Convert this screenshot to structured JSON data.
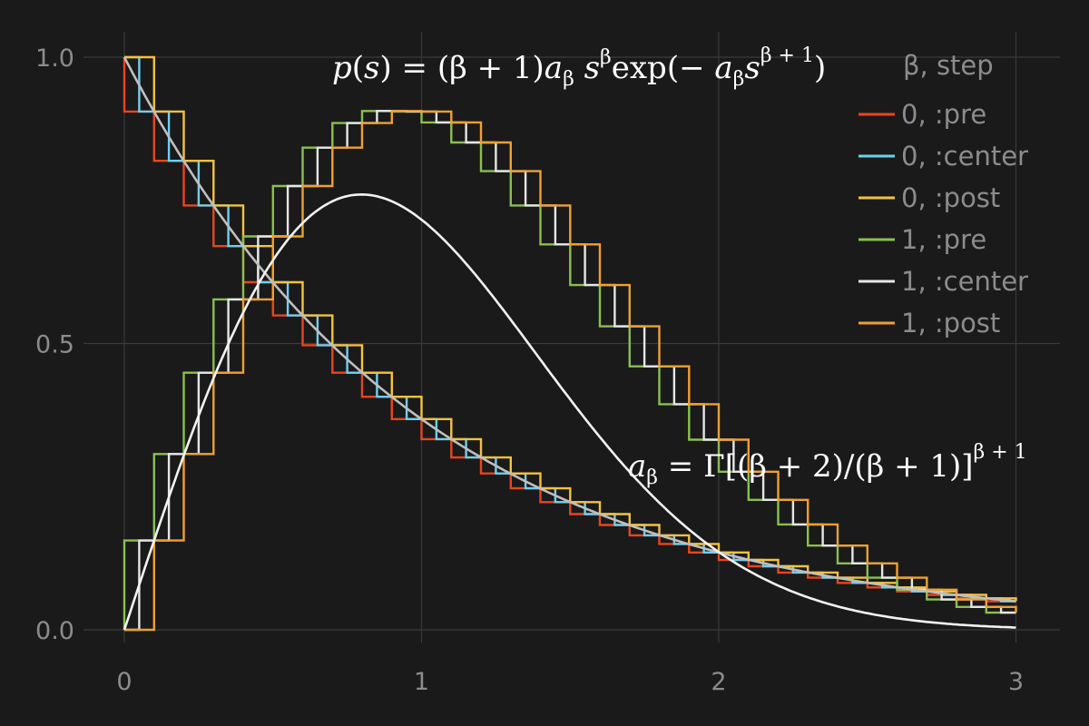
{
  "chart_data": {
    "type": "line",
    "title": "",
    "xlabel": "",
    "ylabel": "",
    "xlim": [
      0,
      3
    ],
    "ylim": [
      0,
      1
    ],
    "x_ticks": [
      "0",
      "1",
      "2",
      "3"
    ],
    "y_ticks": [
      "0.0",
      "0.5",
      "1.0"
    ],
    "grid": true,
    "legend_title": "β, step",
    "legend_position": "top-right",
    "x": [
      0.0,
      0.1,
      0.2,
      0.3,
      0.4,
      0.5,
      0.6,
      0.7,
      0.8,
      0.9,
      1.0,
      1.1,
      1.2,
      1.3,
      1.4,
      1.5,
      1.6,
      1.7,
      1.8,
      1.9,
      2.0,
      2.1,
      2.2,
      2.3,
      2.4,
      2.5,
      2.6,
      2.7,
      2.8,
      2.9,
      3.0
    ],
    "series": [
      {
        "name": "0, :pre",
        "beta": 0,
        "step": "pre",
        "color": "#e8461e",
        "values": [
          1.0,
          0.905,
          0.819,
          0.741,
          0.67,
          0.607,
          0.549,
          0.497,
          0.449,
          0.407,
          0.368,
          0.333,
          0.301,
          0.273,
          0.247,
          0.223,
          0.202,
          0.183,
          0.165,
          0.15,
          0.135,
          0.122,
          0.111,
          0.1,
          0.091,
          0.082,
          0.074,
          0.067,
          0.061,
          0.055,
          0.05
        ]
      },
      {
        "name": "0, :center",
        "beta": 0,
        "step": "center",
        "color": "#6fd0f0",
        "values": [
          1.0,
          0.905,
          0.819,
          0.741,
          0.67,
          0.607,
          0.549,
          0.497,
          0.449,
          0.407,
          0.368,
          0.333,
          0.301,
          0.273,
          0.247,
          0.223,
          0.202,
          0.183,
          0.165,
          0.15,
          0.135,
          0.122,
          0.111,
          0.1,
          0.091,
          0.082,
          0.074,
          0.067,
          0.061,
          0.055,
          0.05
        ]
      },
      {
        "name": "0, :post",
        "beta": 0,
        "step": "post",
        "color": "#f5c23c",
        "values": [
          1.0,
          0.905,
          0.819,
          0.741,
          0.67,
          0.607,
          0.549,
          0.497,
          0.449,
          0.407,
          0.368,
          0.333,
          0.301,
          0.273,
          0.247,
          0.223,
          0.202,
          0.183,
          0.165,
          0.15,
          0.135,
          0.122,
          0.111,
          0.1,
          0.091,
          0.082,
          0.074,
          0.067,
          0.061,
          0.055,
          0.05
        ]
      },
      {
        "name": "1, :pre",
        "beta": 1,
        "step": "pre",
        "color": "#8ac04e",
        "values": [
          0.0,
          0.156,
          0.307,
          0.449,
          0.577,
          0.687,
          0.775,
          0.842,
          0.885,
          0.906,
          0.905,
          0.886,
          0.851,
          0.801,
          0.741,
          0.673,
          0.602,
          0.53,
          0.46,
          0.394,
          0.332,
          0.276,
          0.227,
          0.184,
          0.147,
          0.116,
          0.091,
          0.07,
          0.053,
          0.04,
          0.03
        ]
      },
      {
        "name": "1, :center",
        "beta": 1,
        "step": "center",
        "color": "#e6e6e6",
        "values": [
          0.0,
          0.156,
          0.307,
          0.449,
          0.577,
          0.687,
          0.775,
          0.842,
          0.885,
          0.906,
          0.905,
          0.886,
          0.851,
          0.801,
          0.741,
          0.673,
          0.602,
          0.53,
          0.46,
          0.394,
          0.332,
          0.276,
          0.227,
          0.184,
          0.147,
          0.116,
          0.091,
          0.07,
          0.053,
          0.04,
          0.03
        ]
      },
      {
        "name": "1, :post",
        "beta": 1,
        "step": "post",
        "color": "#f0a030",
        "values": [
          0.0,
          0.156,
          0.307,
          0.449,
          0.577,
          0.687,
          0.775,
          0.842,
          0.885,
          0.906,
          0.905,
          0.886,
          0.851,
          0.801,
          0.741,
          0.673,
          0.602,
          0.53,
          0.46,
          0.394,
          0.332,
          0.276,
          0.227,
          0.184,
          0.147,
          0.116,
          0.091,
          0.07,
          0.053,
          0.04,
          0.03
        ]
      }
    ],
    "smooth_curves": [
      {
        "beta": 0,
        "color": "#bfbfbf"
      },
      {
        "beta": 1,
        "color": "#f2f2f2"
      }
    ],
    "annotations": {
      "formula_p": "p(s) = (β + 1) a_β s^β exp(− a_β s^(β+1))",
      "formula_a": "a_β = Γ[(β + 2)/(β + 1)]^(β+1)"
    }
  }
}
